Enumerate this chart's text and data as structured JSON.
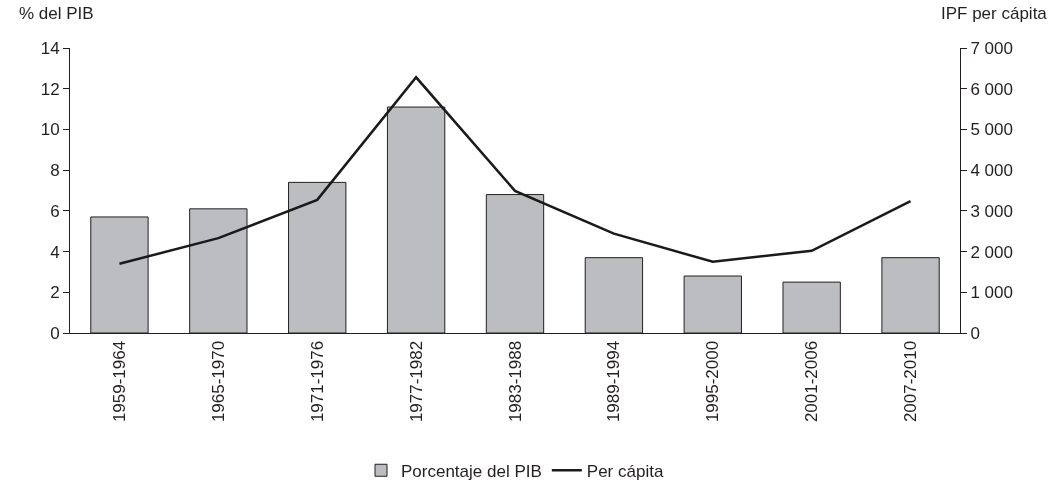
{
  "chart_data": {
    "type": "bar",
    "ylabel": "% del PIB",
    "y2label": "IPF per cápita",
    "categories": [
      "1959-1964",
      "1965-1970",
      "1971-1976",
      "1977-1982",
      "1983-1988",
      "1989-1994",
      "1995-2000",
      "2001-2006",
      "2007-2010"
    ],
    "series": [
      {
        "name": "Porcentaje del PIB",
        "color": "#bcbdc0",
        "values": [
          5.7,
          6.1,
          7.4,
          11.1,
          6.8,
          3.7,
          2.8,
          2.5,
          3.7
        ]
      },
      {
        "name": "Per cápita",
        "type": "line",
        "axis": "y2",
        "color": "#1a1a1a",
        "values": [
          1700,
          2330,
          3270,
          6280,
          3490,
          2440,
          1750,
          2020,
          3240
        ]
      }
    ],
    "ylim": [
      0,
      14
    ],
    "yticks": [
      0,
      2,
      4,
      6,
      8,
      10,
      12,
      14
    ],
    "y2lim": [
      0,
      7000
    ],
    "y2ticks": [
      0,
      {
        "value": 1000,
        "label": "1 000"
      },
      {
        "value": 2000,
        "label": "2 000"
      },
      {
        "value": 3000,
        "label": "3 000"
      },
      {
        "value": 4000,
        "label": "4 000"
      },
      {
        "value": 5000,
        "label": "5 000"
      },
      {
        "value": 6000,
        "label": "6 000"
      },
      {
        "value": 7000,
        "label": "7 000"
      }
    ],
    "grid": false,
    "legend": "bottom",
    "marker": "none",
    "line_style": "solid"
  }
}
